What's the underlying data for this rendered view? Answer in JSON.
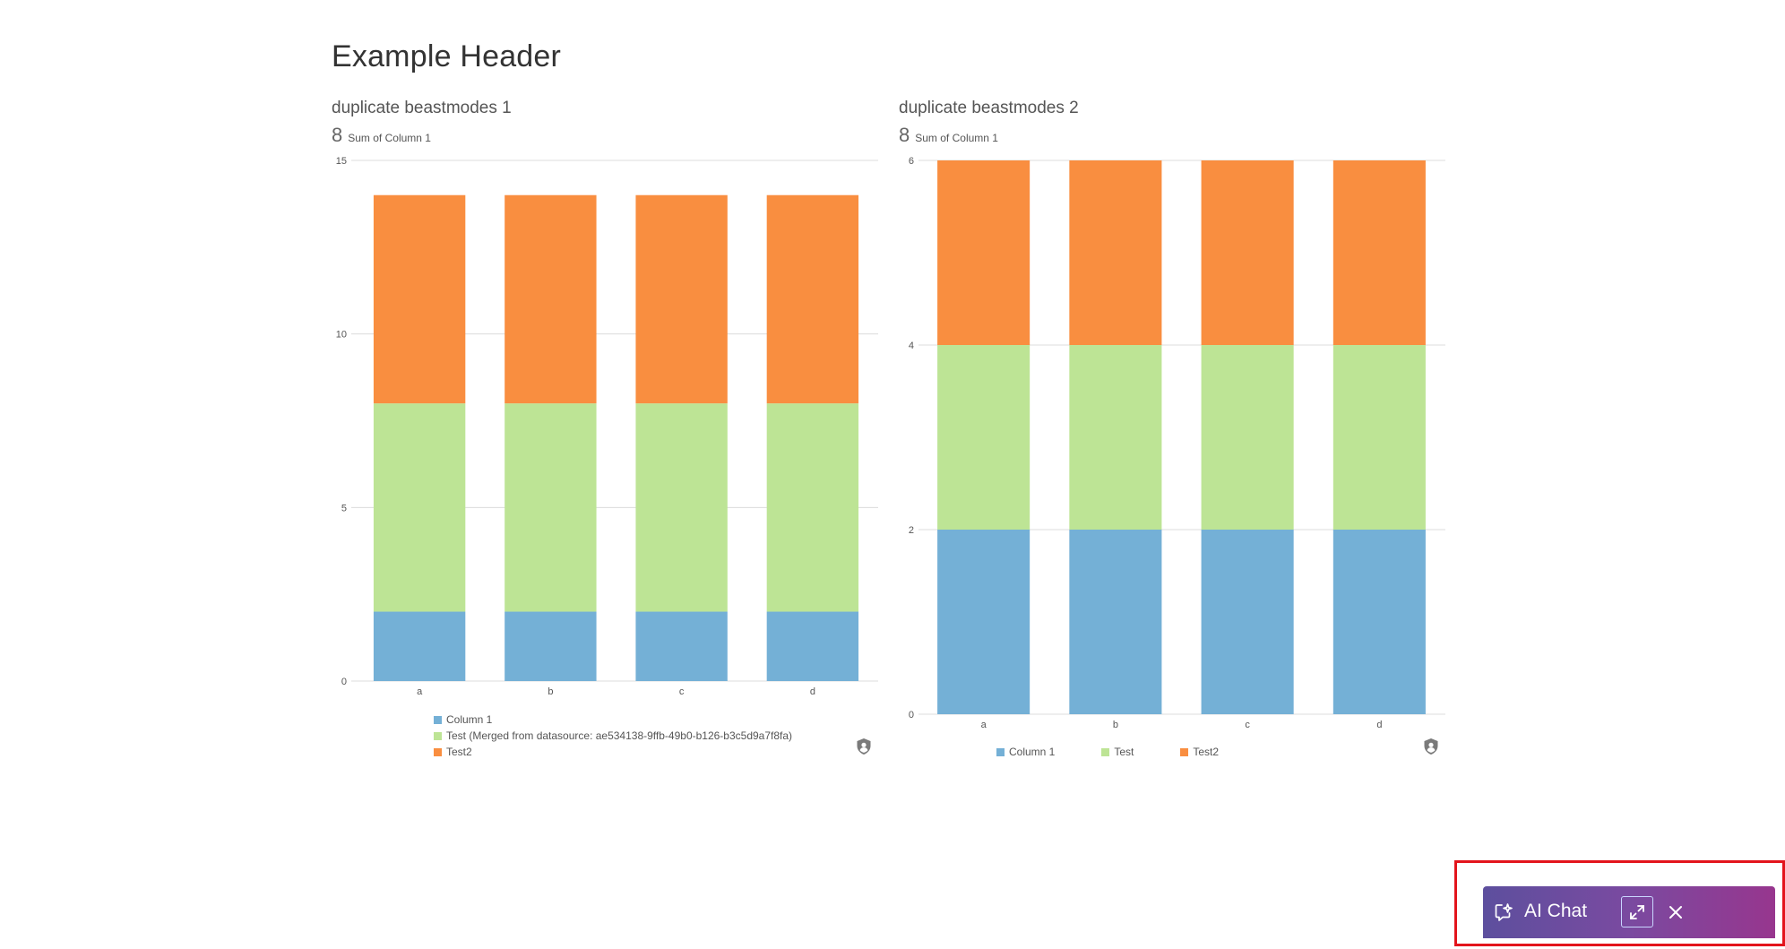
{
  "page": {
    "header": "Example Header"
  },
  "cards": [
    {
      "title": "duplicate beastmodes 1",
      "summary_number": "8",
      "summary_label": "Sum of Column 1",
      "legend": [
        {
          "label": "Column 1",
          "color": "#74b0d6"
        },
        {
          "label": "Test (Merged from datasource: ae534138-9ffb-49b0-b126-b3c5d9a7f8fa)",
          "color": "#bde495"
        },
        {
          "label": "Test2",
          "color": "#f98e40"
        }
      ]
    },
    {
      "title": "duplicate beastmodes 2",
      "summary_number": "8",
      "summary_label": "Sum of Column 1",
      "legend": [
        {
          "label": "Column 1",
          "color": "#74b0d6"
        },
        {
          "label": "Test",
          "color": "#bde495"
        },
        {
          "label": "Test2",
          "color": "#f98e40"
        }
      ]
    }
  ],
  "chart_data": [
    {
      "type": "bar",
      "stacked": true,
      "title": "duplicate beastmodes 1",
      "categories": [
        "a",
        "b",
        "c",
        "d"
      ],
      "series": [
        {
          "name": "Column 1",
          "values": [
            2,
            2,
            2,
            2
          ],
          "color": "#74b0d6"
        },
        {
          "name": "Test (Merged from datasource: ae534138-9ffb-49b0-b126-b3c5d9a7f8fa)",
          "values": [
            6,
            6,
            6,
            6
          ],
          "color": "#bde495"
        },
        {
          "name": "Test2",
          "values": [
            6,
            6,
            6,
            6
          ],
          "color": "#f98e40"
        }
      ],
      "ylim": [
        0,
        15
      ],
      "yticks": [
        0,
        5,
        10,
        15
      ],
      "grid": true,
      "legend_position": "bottom"
    },
    {
      "type": "bar",
      "stacked": true,
      "title": "duplicate beastmodes 2",
      "categories": [
        "a",
        "b",
        "c",
        "d"
      ],
      "series": [
        {
          "name": "Column 1",
          "values": [
            2,
            2,
            2,
            2
          ],
          "color": "#74b0d6"
        },
        {
          "name": "Test",
          "values": [
            2,
            2,
            2,
            2
          ],
          "color": "#bde495"
        },
        {
          "name": "Test2",
          "values": [
            2,
            2,
            2,
            2
          ],
          "color": "#f98e40"
        }
      ],
      "ylim": [
        0,
        6
      ],
      "yticks": [
        0,
        2,
        4,
        6
      ],
      "grid": true,
      "legend_position": "bottom"
    }
  ],
  "ai_chat": {
    "label": "AI Chat",
    "icon": "ai-chat-sparkle-icon",
    "expand_icon": "expand-icon",
    "close_icon": "close-icon"
  }
}
